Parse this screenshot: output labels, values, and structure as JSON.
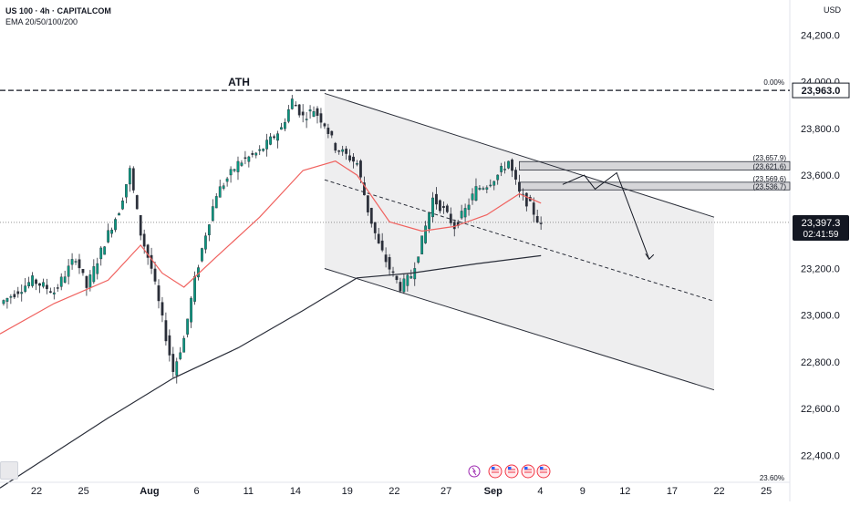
{
  "header": {
    "symbol_line": "US 100 · 4h · CAPITALCOM",
    "indicator_line": "EMA 20/50/100/200",
    "currency": "USD"
  },
  "colors": {
    "up": "#089981",
    "down": "#f23645",
    "candle_body": "#2a2e39",
    "ema_fast": "#f0625f",
    "ema_slow": "#2a2e39",
    "channel_fill": "#eeeeef",
    "zone_fill": "#d6d6d9",
    "price_tag": "#131722"
  },
  "chart_data": {
    "type": "candlestick",
    "symbol": "US 100",
    "timeframe": "4h",
    "yrange": [
      22300,
      24350
    ],
    "x_axis_labels": [
      "22",
      "25",
      "Aug",
      "6",
      "11",
      "14",
      "19",
      "22",
      "27",
      "Sep",
      "4",
      "9",
      "12",
      "17",
      "22",
      "25"
    ],
    "y_axis_labels": [
      "24,200.0",
      "24,000.0",
      "23,800.0",
      "23,600.0",
      "23,400.0",
      "23,200.0",
      "23,000.0",
      "22,800.0",
      "22,600.0",
      "22,400.0"
    ],
    "y_axis_values": [
      24200,
      24000,
      23800,
      23600,
      23400,
      23200,
      23000,
      22800,
      22600,
      22400
    ],
    "price_path": [
      {
        "x": 0,
        "y": 23050
      },
      {
        "x": 3,
        "y": 23150
      },
      {
        "x": 5,
        "y": 23100
      },
      {
        "x": 7,
        "y": 23250
      },
      {
        "x": 8,
        "y": 23120
      },
      {
        "x": 10,
        "y": 23350
      },
      {
        "x": 11,
        "y": 23450
      },
      {
        "x": 12,
        "y": 23620
      },
      {
        "x": 13,
        "y": 23350
      },
      {
        "x": 14,
        "y": 23200
      },
      {
        "x": 15,
        "y": 22980
      },
      {
        "x": 16,
        "y": 22760
      },
      {
        "x": 17,
        "y": 22900
      },
      {
        "x": 18,
        "y": 23150
      },
      {
        "x": 19,
        "y": 23350
      },
      {
        "x": 20,
        "y": 23520
      },
      {
        "x": 22,
        "y": 23650
      },
      {
        "x": 24,
        "y": 23700
      },
      {
        "x": 26,
        "y": 23800
      },
      {
        "x": 27,
        "y": 23920
      },
      {
        "x": 28,
        "y": 23850
      },
      {
        "x": 29,
        "y": 23880
      },
      {
        "x": 30,
        "y": 23820
      },
      {
        "x": 31,
        "y": 23720
      },
      {
        "x": 33,
        "y": 23650
      },
      {
        "x": 34,
        "y": 23450
      },
      {
        "x": 35,
        "y": 23300
      },
      {
        "x": 36,
        "y": 23200
      },
      {
        "x": 37,
        "y": 23120
      },
      {
        "x": 38,
        "y": 23170
      },
      {
        "x": 39,
        "y": 23320
      },
      {
        "x": 40,
        "y": 23500
      },
      {
        "x": 41,
        "y": 23450
      },
      {
        "x": 42,
        "y": 23380
      },
      {
        "x": 43,
        "y": 23450
      },
      {
        "x": 44,
        "y": 23540
      },
      {
        "x": 45,
        "y": 23560
      },
      {
        "x": 46,
        "y": 23600
      },
      {
        "x": 47,
        "y": 23660
      },
      {
        "x": 48,
        "y": 23520
      },
      {
        "x": 49,
        "y": 23470
      },
      {
        "x": 50,
        "y": 23380
      }
    ],
    "ema_fast_path": [
      {
        "x": 0,
        "y": 22920
      },
      {
        "x": 5,
        "y": 23050
      },
      {
        "x": 10,
        "y": 23150
      },
      {
        "x": 13,
        "y": 23300
      },
      {
        "x": 15,
        "y": 23180
      },
      {
        "x": 17,
        "y": 23120
      },
      {
        "x": 20,
        "y": 23250
      },
      {
        "x": 24,
        "y": 23420
      },
      {
        "x": 28,
        "y": 23620
      },
      {
        "x": 31,
        "y": 23660
      },
      {
        "x": 33,
        "y": 23600
      },
      {
        "x": 36,
        "y": 23400
      },
      {
        "x": 39,
        "y": 23360
      },
      {
        "x": 42,
        "y": 23380
      },
      {
        "x": 45,
        "y": 23430
      },
      {
        "x": 48,
        "y": 23520
      },
      {
        "x": 50,
        "y": 23480
      }
    ],
    "ema_slow_path": [
      {
        "x": 0,
        "y": 22260
      },
      {
        "x": 10,
        "y": 22560
      },
      {
        "x": 16,
        "y": 22730
      },
      {
        "x": 22,
        "y": 22860
      },
      {
        "x": 28,
        "y": 23020
      },
      {
        "x": 33,
        "y": 23160
      },
      {
        "x": 38,
        "y": 23180
      },
      {
        "x": 44,
        "y": 23220
      },
      {
        "x": 50,
        "y": 23255
      }
    ],
    "ath": {
      "label": "ATH",
      "value": 23963.0,
      "value_label": "23,963.0",
      "fib_label": "0.00%"
    },
    "fib_bottom_label": "23.60%",
    "current_price": {
      "label": "23,397.3",
      "countdown": "02:41:59"
    },
    "zones": [
      {
        "top": 23657.9,
        "bottom": 23621.6,
        "top_label": "(23,657.9)",
        "bottom_label": "(23,621.6)"
      },
      {
        "top": 23569.6,
        "bottom": 23536.7,
        "top_label": "(23,569.6)",
        "bottom_label": "(23,536.7)"
      }
    ],
    "channel": {
      "upper": [
        {
          "x": 30,
          "y": 23950
        },
        {
          "x": 66,
          "y": 23420
        }
      ],
      "middle": [
        {
          "x": 30,
          "y": 23580
        },
        {
          "x": 66,
          "y": 23060
        }
      ],
      "lower": [
        {
          "x": 30,
          "y": 23200
        },
        {
          "x": 66,
          "y": 22680
        }
      ]
    },
    "projection": [
      {
        "x": 52,
        "y": 23560
      },
      {
        "x": 54,
        "y": 23600
      },
      {
        "x": 55,
        "y": 23540
      },
      {
        "x": 57,
        "y": 23610
      },
      {
        "x": 60,
        "y": 23240
      }
    ]
  }
}
